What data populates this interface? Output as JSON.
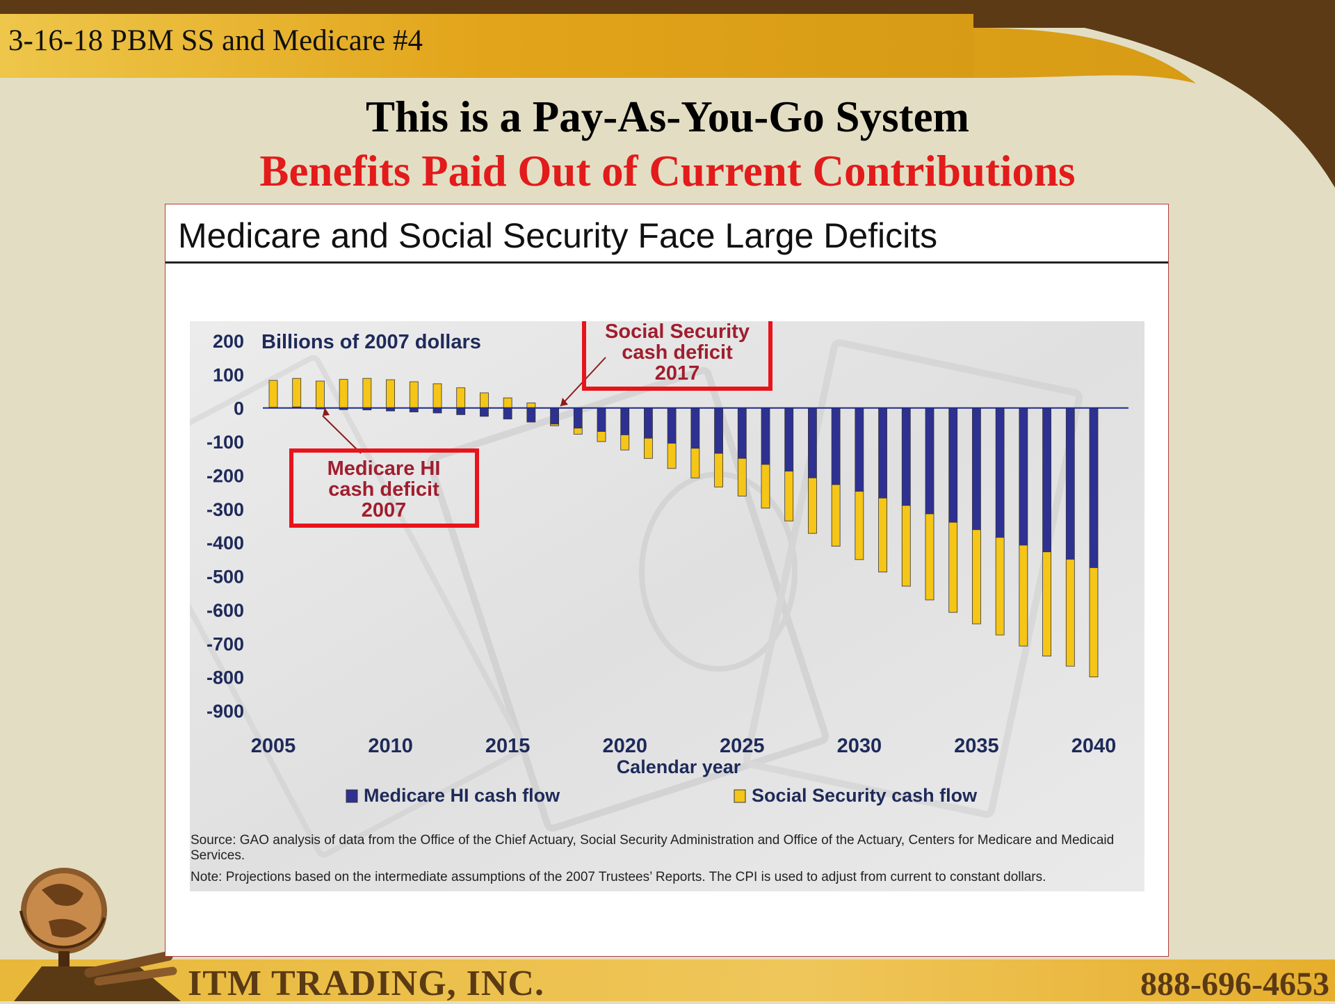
{
  "slide": {
    "label": "3-16-18 PBM SS and Medicare #4",
    "title": "This is a Pay-As-You-Go System",
    "subtitle": "Benefits Paid Out of Current Contributions"
  },
  "panel": {
    "title": "Medicare and Social Security Face Large Deficits",
    "source": "Source:  GAO analysis of data from the Office of the Chief Actuary, Social Security Administration and Office of the Actuary, Centers for Medicare and Medicaid Services.",
    "note": "Note:  Projections based on the intermediate assumptions of the 2007 Trustees’ Reports. The CPI is used to adjust from current to constant dollars."
  },
  "footer": {
    "company": "ITM TRADING, INC.",
    "phone": "888-696-4653"
  },
  "colors": {
    "medicare": "#2e3192",
    "social_security": "#f5c518",
    "title_red": "#e21b1b",
    "callout_border": "#e8141b",
    "callout_text": "#a01d2d",
    "brown": "#5a3a14"
  },
  "chart_data": {
    "type": "bar",
    "stacked": true,
    "ylabel": "Billions of 2007 dollars",
    "xlabel": "Calendar year",
    "ylim": [
      -900,
      200
    ],
    "yticks": [
      200,
      100,
      0,
      -100,
      -200,
      -300,
      -400,
      -500,
      -600,
      -700,
      -800,
      -900
    ],
    "xticks": [
      2005,
      2010,
      2015,
      2020,
      2025,
      2030,
      2035,
      2040
    ],
    "legend_position": "bottom",
    "grid": false,
    "years": [
      2005,
      2006,
      2007,
      2008,
      2009,
      2010,
      2011,
      2012,
      2013,
      2014,
      2015,
      2016,
      2017,
      2018,
      2019,
      2020,
      2021,
      2022,
      2023,
      2024,
      2025,
      2026,
      2027,
      2028,
      2029,
      2030,
      2031,
      2032,
      2033,
      2034,
      2035,
      2036,
      2037,
      2038,
      2039,
      2040
    ],
    "series": [
      {
        "name": "Medicare HI cash flow",
        "values": [
          2,
          3,
          -3,
          -5,
          -6,
          -9,
          -12,
          -15,
          -20,
          -25,
          -33,
          -42,
          -48,
          -60,
          -70,
          -80,
          -90,
          -105,
          -120,
          -135,
          -150,
          -168,
          -188,
          -208,
          -228,
          -248,
          -268,
          -290,
          -315,
          -340,
          -362,
          -385,
          -408,
          -428,
          -450,
          -475
        ]
      },
      {
        "name": "Social Security cash flow",
        "values": [
          80,
          85,
          80,
          85,
          88,
          84,
          78,
          72,
          60,
          45,
          30,
          15,
          -5,
          -18,
          -30,
          -45,
          -60,
          -75,
          -88,
          -100,
          -112,
          -130,
          -148,
          -165,
          -183,
          -203,
          -220,
          -240,
          -256,
          -268,
          -280,
          -290,
          -300,
          -310,
          -318,
          -325
        ]
      }
    ],
    "annotations": [
      {
        "label_lines": [
          "Social Security",
          "cash deficit",
          "2017"
        ],
        "year": 2017
      },
      {
        "label_lines": [
          "Medicare HI",
          "cash deficit",
          "2007"
        ],
        "year": 2007
      }
    ]
  }
}
